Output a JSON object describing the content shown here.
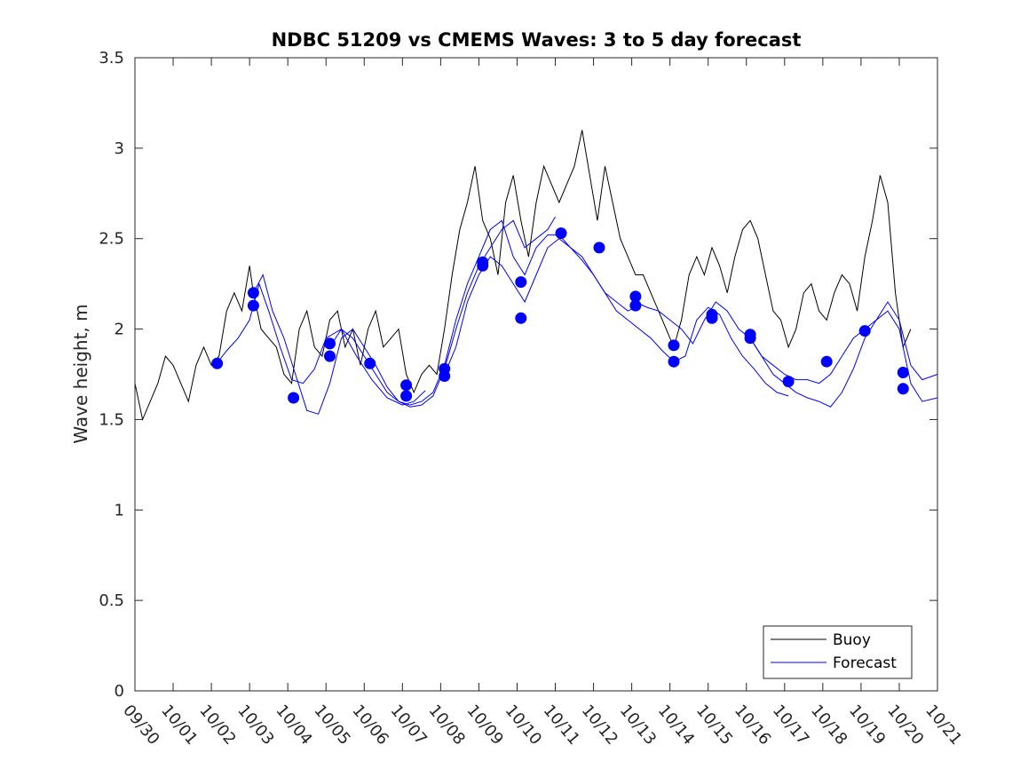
{
  "chart_data": {
    "type": "line",
    "title": "NDBC 51209 vs CMEMS Waves: 3 to 5 day forecast",
    "xlabel": "",
    "ylabel": "Wave height, m",
    "xlim": [
      0,
      21
    ],
    "ylim": [
      0,
      3.5
    ],
    "x_tick_values": [
      0,
      1,
      2,
      3,
      4,
      5,
      6,
      7,
      8,
      9,
      10,
      11,
      12,
      13,
      14,
      15,
      16,
      17,
      18,
      19,
      20,
      21
    ],
    "x_tick_labels": [
      "09/30",
      "10/01",
      "10/02",
      "10/03",
      "10/04",
      "10/05",
      "10/06",
      "10/07",
      "10/08",
      "10/09",
      "10/10",
      "10/11",
      "10/12",
      "10/13",
      "10/14",
      "10/15",
      "10/16",
      "10/17",
      "10/18",
      "10/19",
      "10/20",
      "10/21"
    ],
    "y_tick_values": [
      0,
      0.5,
      1,
      1.5,
      2,
      2.5,
      3,
      3.5
    ],
    "y_tick_labels": [
      "0",
      "0.5",
      "1",
      "1.5",
      "2",
      "2.5",
      "3",
      "3.5"
    ],
    "grid": false,
    "legend": {
      "placement": "bottom-right",
      "entries": [
        "Buoy",
        "Forecast"
      ]
    },
    "colors": {
      "buoy": "#000000",
      "forecast": "#0000ff",
      "markers": "#0000ff"
    },
    "series": [
      {
        "name": "Buoy",
        "x": [
          0,
          0.2,
          0.4,
          0.6,
          0.8,
          1.0,
          1.2,
          1.4,
          1.6,
          1.8,
          2.0,
          2.2,
          2.4,
          2.6,
          2.8,
          3.0,
          3.1,
          3.3,
          3.5,
          3.7,
          3.9,
          4.1,
          4.3,
          4.5,
          4.7,
          4.9,
          5.1,
          5.3,
          5.5,
          5.7,
          5.9,
          6.1,
          6.3,
          6.5,
          6.7,
          6.9,
          7.1,
          7.3,
          7.5,
          7.7,
          7.9,
          8.1,
          8.3,
          8.5,
          8.7,
          8.9,
          9.1,
          9.3,
          9.5,
          9.7,
          9.9,
          10.1,
          10.3,
          10.5,
          10.7,
          10.9,
          11.1,
          11.3,
          11.5,
          11.7,
          11.9,
          12.1,
          12.3,
          12.5,
          12.7,
          12.9,
          13.1,
          13.3,
          13.5,
          13.7,
          13.9,
          14.1,
          14.3,
          14.5,
          14.7,
          14.9,
          15.1,
          15.3,
          15.5,
          15.7,
          15.9,
          16.1,
          16.3,
          16.5,
          16.7,
          16.9,
          17.1,
          17.3,
          17.5,
          17.7,
          17.9,
          18.1,
          18.3,
          18.5,
          18.7,
          18.9,
          19.1,
          19.3,
          19.5,
          19.7,
          19.9,
          20.1,
          20.3
        ],
        "y": [
          1.7,
          1.5,
          1.6,
          1.7,
          1.85,
          1.8,
          1.7,
          1.6,
          1.8,
          1.9,
          1.8,
          1.85,
          2.1,
          2.2,
          2.1,
          2.35,
          2.2,
          2.0,
          1.95,
          1.9,
          1.75,
          1.7,
          2.0,
          2.1,
          1.9,
          1.85,
          2.05,
          2.1,
          1.9,
          2.0,
          1.8,
          2.0,
          2.1,
          1.9,
          1.95,
          2.0,
          1.75,
          1.65,
          1.75,
          1.8,
          1.75,
          2.0,
          2.3,
          2.55,
          2.7,
          2.9,
          2.6,
          2.5,
          2.3,
          2.7,
          2.85,
          2.6,
          2.4,
          2.7,
          2.9,
          2.8,
          2.7,
          2.8,
          2.9,
          3.1,
          2.85,
          2.6,
          2.9,
          2.7,
          2.5,
          2.4,
          2.3,
          2.3,
          2.2,
          2.1,
          2.0,
          1.9,
          2.05,
          2.3,
          2.4,
          2.3,
          2.45,
          2.35,
          2.2,
          2.4,
          2.55,
          2.6,
          2.5,
          2.3,
          2.1,
          2.05,
          1.9,
          2.0,
          2.2,
          2.25,
          2.1,
          2.05,
          2.2,
          2.3,
          2.25,
          2.1,
          2.4,
          2.6,
          2.85,
          2.7,
          2.2,
          1.9,
          2.0
        ]
      },
      {
        "name": "Forecast",
        "segments": [
          {
            "x": [
              2.1,
              2.4,
              2.7,
              3.0,
              3.25,
              3.5,
              3.8,
              4.1,
              4.4,
              4.7,
              5.0,
              5.4,
              5.8,
              6.2,
              6.6,
              7.0,
              7.3,
              7.6
            ],
            "y": [
              1.8,
              1.88,
              1.95,
              2.05,
              2.25,
              2.1,
              1.9,
              1.72,
              1.7,
              1.78,
              1.95,
              2.0,
              1.85,
              1.72,
              1.62,
              1.58,
              1.6,
              1.66
            ]
          },
          {
            "x": [
              3.1,
              3.35,
              3.6,
              3.9,
              4.2,
              4.5,
              4.8,
              5.1,
              5.4,
              5.7,
              6.0,
              6.3,
              6.6,
              6.9,
              7.2,
              7.5,
              7.8,
              8.1,
              8.4,
              8.7,
              9.0,
              9.3,
              9.6,
              9.9,
              10.2,
              10.5,
              10.8,
              11.0
            ],
            "y": [
              2.2,
              2.3,
              2.1,
              1.95,
              1.75,
              1.55,
              1.53,
              1.7,
              1.95,
              2.0,
              1.9,
              1.8,
              1.68,
              1.6,
              1.57,
              1.58,
              1.63,
              1.78,
              2.0,
              2.2,
              2.35,
              2.45,
              2.55,
              2.6,
              2.45,
              2.5,
              2.55,
              2.62
            ]
          },
          {
            "x": [
              5.1,
              5.4,
              5.7,
              6.0,
              6.3,
              6.6,
              6.9,
              7.2,
              7.5,
              7.8,
              8.1,
              8.4,
              8.7,
              9.0,
              9.3,
              9.6,
              9.9,
              10.2,
              10.5,
              10.8,
              11.1,
              11.4,
              11.7,
              12.0,
              12.3,
              12.6,
              12.9,
              13.1
            ],
            "y": [
              1.9,
              2.0,
              1.95,
              1.85,
              1.75,
              1.65,
              1.6,
              1.58,
              1.6,
              1.65,
              1.8,
              2.05,
              2.25,
              2.4,
              2.55,
              2.6,
              2.4,
              2.3,
              2.45,
              2.52,
              2.52,
              2.45,
              2.4,
              2.3,
              2.2,
              2.15,
              2.1,
              2.12
            ]
          },
          {
            "x": [
              8.1,
              8.4,
              8.7,
              9.0,
              9.3,
              9.6,
              9.9,
              10.2,
              10.5,
              10.8,
              11.1,
              11.4,
              11.7,
              12.0,
              12.3,
              12.6,
              12.9,
              13.2,
              13.5,
              13.8,
              14.1,
              14.4,
              14.7,
              15.0,
              15.3,
              15.6,
              15.9,
              16.2,
              16.5,
              16.8,
              17.1
            ],
            "y": [
              1.75,
              1.9,
              2.15,
              2.3,
              2.4,
              2.35,
              2.25,
              2.15,
              2.3,
              2.45,
              2.5,
              2.45,
              2.38,
              2.3,
              2.2,
              2.1,
              2.05,
              2.0,
              1.95,
              1.88,
              1.82,
              1.85,
              2.05,
              2.12,
              2.08,
              1.95,
              1.85,
              1.78,
              1.7,
              1.65,
              1.63
            ]
          },
          {
            "x": [
              13.1,
              13.4,
              13.7,
              14.0,
              14.3,
              14.6,
              14.9,
              15.2,
              15.5,
              15.8,
              16.1,
              16.4,
              16.7,
              17.0,
              17.3,
              17.6,
              17.9,
              18.2,
              18.5,
              18.8,
              19.1,
              19.4,
              19.7,
              20.0,
              20.3,
              20.6,
              21.0
            ],
            "y": [
              2.15,
              2.12,
              2.1,
              2.05,
              2.0,
              1.92,
              2.05,
              2.15,
              2.1,
              2.0,
              1.95,
              1.85,
              1.8,
              1.75,
              1.72,
              1.72,
              1.7,
              1.75,
              1.85,
              1.95,
              2.0,
              2.05,
              2.15,
              2.05,
              1.8,
              1.72,
              1.75
            ]
          },
          {
            "x": [
              16.1,
              16.4,
              16.7,
              17.0,
              17.3,
              17.6,
              17.9,
              18.2,
              18.5,
              18.8,
              19.1,
              19.4,
              19.7,
              20.0,
              20.3,
              20.6,
              21.0
            ],
            "y": [
              1.95,
              1.85,
              1.75,
              1.7,
              1.65,
              1.62,
              1.6,
              1.57,
              1.65,
              1.78,
              1.95,
              2.05,
              2.1,
              2.0,
              1.7,
              1.6,
              1.62
            ]
          }
        ]
      },
      {
        "name": "Forecast start markers",
        "x": [
          2.15,
          3.1,
          3.1,
          4.15,
          5.1,
          5.1,
          6.15,
          7.1,
          7.1,
          8.1,
          8.1,
          9.1,
          9.1,
          10.1,
          10.1,
          11.15,
          12.15,
          13.1,
          13.1,
          14.1,
          14.1,
          15.1,
          15.1,
          16.1,
          16.1,
          17.1,
          18.1,
          19.1,
          20.1,
          20.1
        ],
        "y": [
          1.81,
          2.2,
          2.13,
          1.62,
          1.92,
          1.85,
          1.81,
          1.69,
          1.63,
          1.78,
          1.74,
          2.37,
          2.35,
          2.26,
          2.06,
          2.53,
          2.45,
          2.18,
          2.13,
          1.91,
          1.82,
          2.08,
          2.06,
          1.97,
          1.95,
          1.71,
          1.82,
          1.99,
          1.76,
          1.67
        ]
      }
    ]
  }
}
